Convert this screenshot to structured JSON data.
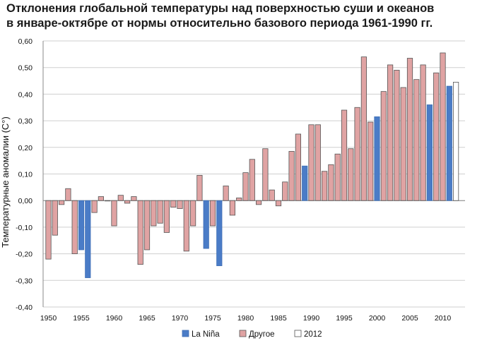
{
  "chart_data": {
    "type": "bar",
    "title_line1": "Отклонения глобальной температуры над поверхностью суши и океанов",
    "title_line2": "в январе-октябре от нормы относительно базового периода 1961-1990 гг.",
    "ylabel": "Температурные аномалии (C°)",
    "xlabel": "",
    "ylim": [
      -0.4,
      0.6
    ],
    "yticks": [
      "0,60",
      "0,50",
      "0,40",
      "0,30",
      "0,20",
      "0,10",
      "0,00",
      "-0,10",
      "-0,20",
      "-0,30",
      "-0,40"
    ],
    "xticks": [
      "1950",
      "1955",
      "1960",
      "1965",
      "1970",
      "1975",
      "1980",
      "1985",
      "1990",
      "1995",
      "2000",
      "2005",
      "2010"
    ],
    "grid": true,
    "legend_position": "bottom",
    "legend": [
      {
        "key": "lanina",
        "label": "La Niña",
        "color": "#4a7cc7"
      },
      {
        "key": "other",
        "label": "Другое",
        "color": "#e0a3a3"
      },
      {
        "key": "y2012",
        "label": "2012",
        "color": "#ffffff"
      }
    ],
    "years": [
      1950,
      1951,
      1952,
      1953,
      1954,
      1955,
      1956,
      1957,
      1958,
      1959,
      1960,
      1961,
      1962,
      1963,
      1964,
      1965,
      1966,
      1967,
      1968,
      1969,
      1970,
      1971,
      1972,
      1973,
      1974,
      1975,
      1976,
      1977,
      1978,
      1979,
      1980,
      1981,
      1982,
      1983,
      1984,
      1985,
      1986,
      1987,
      1988,
      1989,
      1990,
      1991,
      1992,
      1993,
      1994,
      1995,
      1996,
      1997,
      1998,
      1999,
      2000,
      2001,
      2002,
      2003,
      2004,
      2005,
      2006,
      2007,
      2008,
      2009,
      2010,
      2011,
      2012
    ],
    "values": [
      -0.22,
      -0.13,
      -0.015,
      0.045,
      -0.2,
      -0.185,
      -0.29,
      -0.045,
      0.015,
      0.0,
      -0.095,
      0.02,
      -0.01,
      0.015,
      -0.24,
      -0.185,
      -0.095,
      -0.085,
      -0.12,
      -0.025,
      -0.03,
      -0.19,
      -0.095,
      0.095,
      -0.18,
      -0.095,
      -0.245,
      0.055,
      -0.055,
      0.01,
      0.105,
      0.155,
      -0.015,
      0.195,
      0.04,
      -0.02,
      0.07,
      0.185,
      0.25,
      0.13,
      0.285,
      0.285,
      0.11,
      0.135,
      0.175,
      0.34,
      0.195,
      0.35,
      0.54,
      0.295,
      0.315,
      0.41,
      0.51,
      0.49,
      0.425,
      0.535,
      0.455,
      0.51,
      0.36,
      0.48,
      0.555,
      0.43,
      0.445
    ],
    "categories": [
      "other",
      "other",
      "other",
      "other",
      "other",
      "lanina",
      "lanina",
      "other",
      "other",
      "other",
      "other",
      "other",
      "other",
      "other",
      "other",
      "other",
      "other",
      "other",
      "other",
      "other",
      "other",
      "other",
      "other",
      "other",
      "lanina",
      "other",
      "lanina",
      "other",
      "other",
      "other",
      "other",
      "other",
      "other",
      "other",
      "other",
      "other",
      "other",
      "other",
      "other",
      "lanina",
      "other",
      "other",
      "other",
      "other",
      "other",
      "other",
      "other",
      "other",
      "other",
      "other",
      "lanina",
      "other",
      "other",
      "other",
      "other",
      "other",
      "other",
      "other",
      "lanina",
      "other",
      "other",
      "lanina",
      "y2012"
    ]
  }
}
